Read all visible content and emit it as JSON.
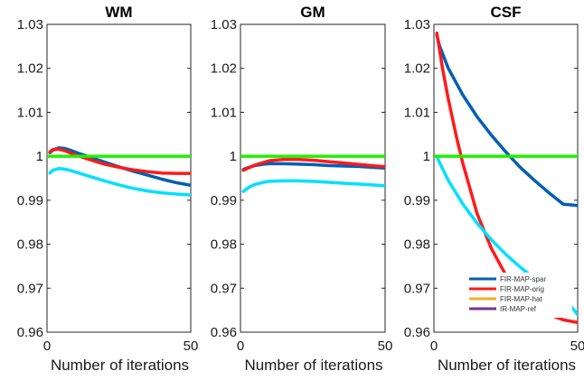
{
  "chart_data": [
    {
      "type": "line",
      "title": "WM",
      "xlabel": "Number of iterations",
      "ylabel": "",
      "xlim": [
        0,
        50
      ],
      "ylim": [
        0.96,
        1.03
      ],
      "xticks": [
        "0",
        "50"
      ],
      "yticks": [
        "0.96",
        "0.97",
        "0.98",
        "0.99",
        "1",
        "1.01",
        "1.02",
        "1.03"
      ],
      "series": [
        {
          "color": "#005fb3",
          "x": [
            1,
            2,
            4,
            6,
            8,
            10,
            15,
            20,
            25,
            30,
            35,
            40,
            45,
            50
          ],
          "y": [
            1.0008,
            1.0014,
            1.0019,
            1.0018,
            1.0014,
            1.0009,
            0.9998,
            0.9987,
            0.9976,
            0.9966,
            0.9957,
            0.9948,
            0.994,
            0.9934
          ]
        },
        {
          "color": "#ff1a1a",
          "x": [
            1,
            2,
            4,
            6,
            8,
            10,
            15,
            20,
            25,
            30,
            35,
            40,
            45,
            50
          ],
          "y": [
            1.001,
            1.0015,
            1.0016,
            1.0013,
            1.0008,
            1.0003,
            0.9992,
            0.9982,
            0.9975,
            0.9969,
            0.9965,
            0.9962,
            0.9961,
            0.9961
          ]
        },
        {
          "color": "#00e0ff",
          "x": [
            1,
            2,
            4,
            6,
            8,
            10,
            15,
            20,
            25,
            30,
            35,
            40,
            45,
            50
          ],
          "y": [
            0.9962,
            0.9968,
            0.9972,
            0.9971,
            0.9968,
            0.9964,
            0.9954,
            0.9944,
            0.9935,
            0.9927,
            0.9921,
            0.9917,
            0.9914,
            0.9912
          ]
        },
        {
          "color": "#22ee00",
          "x": [
            0,
            50
          ],
          "y": [
            1.0,
            1.0
          ]
        }
      ]
    },
    {
      "type": "line",
      "title": "GM",
      "xlabel": "Number of iterations",
      "ylabel": "",
      "xlim": [
        0,
        50
      ],
      "ylim": [
        0.96,
        1.03
      ],
      "xticks": [
        "0",
        "50"
      ],
      "yticks": [
        "0.96",
        "0.97",
        "0.98",
        "0.99",
        "1",
        "1.01",
        "1.02",
        "1.03"
      ],
      "series": [
        {
          "color": "#005fb3",
          "x": [
            1,
            3,
            5,
            8,
            10,
            15,
            20,
            25,
            30,
            35,
            40,
            45,
            50
          ],
          "y": [
            0.997,
            0.9975,
            0.9979,
            0.9982,
            0.9983,
            0.9983,
            0.9982,
            0.9981,
            0.9979,
            0.9978,
            0.9977,
            0.9975,
            0.9973
          ]
        },
        {
          "color": "#ff1a1a",
          "x": [
            1,
            3,
            5,
            8,
            10,
            15,
            20,
            25,
            30,
            35,
            40,
            45,
            50
          ],
          "y": [
            0.9968,
            0.9974,
            0.998,
            0.9986,
            0.999,
            0.9993,
            0.9993,
            0.9991,
            0.9988,
            0.9985,
            0.9982,
            0.9979,
            0.9976
          ]
        },
        {
          "color": "#00e0ff",
          "x": [
            1,
            3,
            5,
            8,
            10,
            15,
            20,
            25,
            30,
            35,
            40,
            45,
            50
          ],
          "y": [
            0.992,
            0.993,
            0.9936,
            0.9941,
            0.9943,
            0.9944,
            0.9944,
            0.9943,
            0.9941,
            0.9939,
            0.9937,
            0.9935,
            0.9933
          ]
        },
        {
          "color": "#22ee00",
          "x": [
            0,
            50
          ],
          "y": [
            1.0,
            1.0
          ]
        }
      ]
    },
    {
      "type": "line",
      "title": "CSF",
      "xlabel": "Number of iterations",
      "ylabel": "",
      "xlim": [
        0,
        50
      ],
      "ylim": [
        0.96,
        1.03
      ],
      "xticks": [
        "0",
        "50"
      ],
      "yticks": [
        "0.96",
        "0.97",
        "0.98",
        "0.99",
        "1",
        "1.01",
        "1.02",
        "1.03"
      ],
      "legend": {
        "position": "bottom-right",
        "entries": [
          {
            "label": "FIR-MAP-spar",
            "color": "#005fb3"
          },
          {
            "label": "FIR-MAP-orig",
            "color": "#ff1a1a"
          },
          {
            "label": "FIR-MAP-hat",
            "color": "#f0b020"
          },
          {
            "label": "IR-MAP-ref",
            "color": "#7e2f8e"
          }
        ]
      },
      "series": [
        {
          "color": "#005fb3",
          "x": [
            1,
            2,
            5,
            10,
            15,
            20,
            25,
            30,
            35,
            40,
            45,
            50
          ],
          "y": [
            1.0275,
            1.025,
            1.02,
            1.014,
            1.009,
            1.0048,
            1.001,
            0.9975,
            0.9945,
            0.9917,
            0.9891,
            0.9888
          ]
        },
        {
          "color": "#ff1a1a",
          "x": [
            1,
            2,
            3,
            5,
            8,
            10,
            15,
            20,
            25,
            30,
            35,
            40,
            45,
            50
          ],
          "y": [
            1.028,
            1.024,
            1.02,
            1.013,
            1.004,
            0.9985,
            0.987,
            0.979,
            0.973,
            0.969,
            0.966,
            0.964,
            0.9628,
            0.9622
          ]
        },
        {
          "color": "#00e0ff",
          "x": [
            1,
            2,
            5,
            10,
            15,
            20,
            25,
            30,
            35,
            40,
            45,
            50
          ],
          "y": [
            1.0,
            0.9985,
            0.9945,
            0.9892,
            0.9848,
            0.981,
            0.9777,
            0.9748,
            0.9722,
            0.97,
            0.968,
            0.964
          ]
        },
        {
          "color": "#22ee00",
          "x": [
            0,
            50
          ],
          "y": [
            1.0,
            1.0
          ]
        }
      ]
    }
  ]
}
